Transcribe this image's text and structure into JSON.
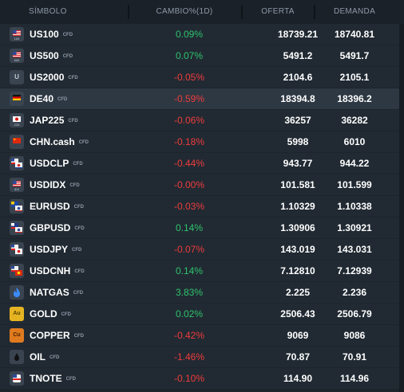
{
  "columns": {
    "symbol": "SÍMBOLO",
    "change": "CAMBIO%(1D)",
    "bid": "OFERTA",
    "ask": "DEMANDA"
  },
  "colors": {
    "positive": "#2fc36d",
    "negative": "#ef3b3b",
    "row": "#212a33",
    "selected_row": "#2e3843"
  },
  "instruments": [
    {
      "symbol": "US100",
      "tag": "CFD",
      "change": "0.09%",
      "bid": "18739.21",
      "ask": "18740.81",
      "icon": "us-flag-icon",
      "icon_text": "100",
      "direction": "pos"
    },
    {
      "symbol": "US500",
      "tag": "CFD",
      "change": "0.07%",
      "bid": "5491.2",
      "ask": "5491.7",
      "icon": "us-flag-icon",
      "icon_text": "500",
      "direction": "pos"
    },
    {
      "symbol": "US2000",
      "tag": "CFD",
      "change": "-0.05%",
      "bid": "2104.6",
      "ask": "2105.1",
      "icon": "letter-u-icon",
      "icon_text": "U",
      "direction": "neg"
    },
    {
      "symbol": "DE40",
      "tag": "CFD",
      "change": "-0.59%",
      "bid": "18394.8",
      "ask": "18396.2",
      "icon": "germany-flag-icon",
      "icon_text": "",
      "direction": "neg",
      "selected": true
    },
    {
      "symbol": "JAP225",
      "tag": "CFD",
      "change": "-0.06%",
      "bid": "36257",
      "ask": "36282",
      "icon": "japan-flag-icon",
      "icon_text": "225",
      "direction": "neg"
    },
    {
      "symbol": "CHN.cash",
      "tag": "CFD",
      "change": "-0.18%",
      "bid": "5998",
      "ask": "6010",
      "icon": "china-flag-icon",
      "icon_text": "",
      "direction": "neg"
    },
    {
      "symbol": "USDCLP",
      "tag": "CFD",
      "change": "-0.44%",
      "bid": "943.77",
      "ask": "944.22",
      "icon": "us-chile-flags-icon",
      "icon_text": "",
      "direction": "neg"
    },
    {
      "symbol": "USDIDX",
      "tag": "CFD",
      "change": "-0.00%",
      "bid": "101.581",
      "ask": "101.599",
      "icon": "us-flag-icon",
      "icon_text": "IDX",
      "direction": "neg"
    },
    {
      "symbol": "EURUSD",
      "tag": "CFD",
      "change": "-0.03%",
      "bid": "1.10329",
      "ask": "1.10338",
      "icon": "eu-us-flags-icon",
      "icon_text": "",
      "direction": "neg"
    },
    {
      "symbol": "GBPUSD",
      "tag": "CFD",
      "change": "0.14%",
      "bid": "1.30906",
      "ask": "1.30921",
      "icon": "uk-us-flags-icon",
      "icon_text": "",
      "direction": "pos"
    },
    {
      "symbol": "USDJPY",
      "tag": "CFD",
      "change": "-0.07%",
      "bid": "143.019",
      "ask": "143.031",
      "icon": "us-japan-flags-icon",
      "icon_text": "",
      "direction": "neg"
    },
    {
      "symbol": "USDCNH",
      "tag": "CFD",
      "change": "0.14%",
      "bid": "7.12810",
      "ask": "7.12939",
      "icon": "us-china-flags-icon",
      "icon_text": "",
      "direction": "pos"
    },
    {
      "symbol": "NATGAS",
      "tag": "CFD",
      "change": "3.83%",
      "bid": "2.225",
      "ask": "2.236",
      "icon": "flame-icon",
      "icon_text": "",
      "direction": "pos"
    },
    {
      "symbol": "GOLD",
      "tag": "CFD",
      "change": "0.02%",
      "bid": "2506.43",
      "ask": "2506.79",
      "icon": "gold-icon",
      "icon_text": "Au",
      "direction": "pos"
    },
    {
      "symbol": "COPPER",
      "tag": "CFD",
      "change": "-0.42%",
      "bid": "9069",
      "ask": "9086",
      "icon": "copper-icon",
      "icon_text": "Cu",
      "direction": "neg"
    },
    {
      "symbol": "OIL",
      "tag": "CFD",
      "change": "-1.46%",
      "bid": "70.87",
      "ask": "70.91",
      "icon": "oil-drop-icon",
      "icon_text": "",
      "direction": "neg"
    },
    {
      "symbol": "TNOTE",
      "tag": "CFD",
      "change": "-0.10%",
      "bid": "114.90",
      "ask": "114.96",
      "icon": "us-bond-icon",
      "icon_text": "",
      "direction": "neg"
    }
  ]
}
